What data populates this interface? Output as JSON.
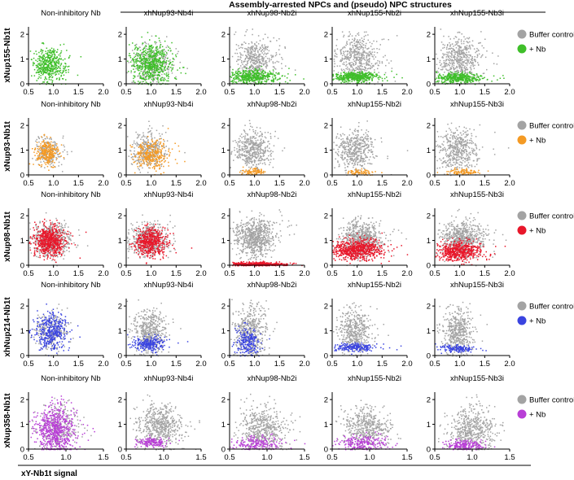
{
  "header": {
    "title": "Assembly-arrested NPCs and (pseudo) NPC structures"
  },
  "x_axis_label": "xY-Nb1t signal",
  "legend": {
    "control_label": "Buffer control",
    "nb_label": "+ Nb",
    "control_color": "#a3a3a3"
  },
  "chart_data": {
    "type": "scatter",
    "column_titles": [
      "Non-inhibitory Nb",
      "xhNup93-Nb4i",
      "xhNup98-Nb2i",
      "xhNup155-Nb2i",
      "xhNup155-Nb3i"
    ],
    "rows": [
      {
        "ylabel": "xNup155-Nb1t",
        "nb_color": "#3fbf2a",
        "xlim": [
          0.5,
          2.0
        ],
        "xticks": [
          "0.5",
          "1.0",
          "1.5",
          "2.0"
        ],
        "ylim": [
          0,
          2.3
        ],
        "yticks": [
          "0",
          "1",
          "2"
        ],
        "panels": [
          {
            "title": "Non-inhibitory Nb",
            "nb": {
              "x_center": 0.9,
              "x_spread": 0.16,
              "y_center": 0.8,
              "y_spread": 0.35,
              "count": 450
            },
            "control": null
          },
          {
            "title": "xhNup93-Nb4i",
            "nb": {
              "x_center": 1.0,
              "x_spread": 0.2,
              "y_center": 0.8,
              "y_spread": 0.4,
              "count": 600
            },
            "control": {
              "x_center": 1.0,
              "x_spread": 0.2,
              "y_center": 0.85,
              "y_spread": 0.4,
              "count": 300
            }
          },
          {
            "title": "xhNup98-Nb2i",
            "nb": {
              "x_center": 0.95,
              "x_spread": 0.25,
              "y_center": 0.3,
              "y_spread": 0.15,
              "count": 450
            },
            "control": {
              "x_center": 1.0,
              "x_spread": 0.2,
              "y_center": 1.0,
              "y_spread": 0.45,
              "count": 450
            }
          },
          {
            "title": "xhNup155-Nb2i",
            "nb": {
              "x_center": 0.95,
              "x_spread": 0.22,
              "y_center": 0.3,
              "y_spread": 0.1,
              "count": 450
            },
            "control": {
              "x_center": 1.0,
              "x_spread": 0.2,
              "y_center": 1.05,
              "y_spread": 0.45,
              "count": 500
            }
          },
          {
            "title": "xhNup155-Nb3i",
            "nb": {
              "x_center": 0.95,
              "x_spread": 0.22,
              "y_center": 0.25,
              "y_spread": 0.1,
              "count": 400
            },
            "control": {
              "x_center": 1.0,
              "x_spread": 0.2,
              "y_center": 1.0,
              "y_spread": 0.45,
              "count": 500
            }
          }
        ]
      },
      {
        "ylabel": "xNup93-Nb1t",
        "nb_color": "#f49a24",
        "xlim": [
          0.5,
          2.0
        ],
        "xticks": [
          "0.5",
          "1.0",
          "1.5",
          "2.0"
        ],
        "ylim": [
          0,
          2.3
        ],
        "yticks": [
          "0",
          "1",
          "2"
        ],
        "panels": [
          {
            "title": "Non-inhibitory Nb",
            "nb": {
              "x_center": 0.85,
              "x_spread": 0.1,
              "y_center": 0.95,
              "y_spread": 0.25,
              "count": 260
            },
            "control": {
              "x_center": 0.9,
              "x_spread": 0.12,
              "y_center": 0.95,
              "y_spread": 0.3,
              "count": 200
            }
          },
          {
            "title": "xhNup93-Nb4i",
            "nb": {
              "x_center": 1.0,
              "x_spread": 0.15,
              "y_center": 0.85,
              "y_spread": 0.3,
              "count": 300
            },
            "control": {
              "x_center": 0.95,
              "x_spread": 0.15,
              "y_center": 1.0,
              "y_spread": 0.35,
              "count": 350
            }
          },
          {
            "title": "xhNup98-Nb2i",
            "nb": {
              "x_center": 0.95,
              "x_spread": 0.12,
              "y_center": 0.15,
              "y_spread": 0.07,
              "count": 80
            },
            "control": {
              "x_center": 0.95,
              "x_spread": 0.18,
              "y_center": 1.05,
              "y_spread": 0.4,
              "count": 450
            }
          },
          {
            "title": "xhNup155-Nb2i",
            "nb": {
              "x_center": 1.05,
              "x_spread": 0.12,
              "y_center": 0.12,
              "y_spread": 0.06,
              "count": 70
            },
            "control": {
              "x_center": 0.95,
              "x_spread": 0.18,
              "y_center": 1.0,
              "y_spread": 0.4,
              "count": 450
            }
          },
          {
            "title": "xhNup155-Nb3i",
            "nb": {
              "x_center": 1.05,
              "x_spread": 0.15,
              "y_center": 0.15,
              "y_spread": 0.06,
              "count": 90
            },
            "control": {
              "x_center": 0.95,
              "x_spread": 0.18,
              "y_center": 1.05,
              "y_spread": 0.4,
              "count": 450
            }
          }
        ]
      },
      {
        "ylabel": "xNup98-Nb1t",
        "nb_color": "#e8172a",
        "xlim": [
          0.5,
          2.0
        ],
        "xticks": [
          "0.5",
          "1.0",
          "1.5",
          "2.0"
        ],
        "ylim": [
          0,
          2.3
        ],
        "yticks": [
          "0",
          "1",
          "2"
        ],
        "panels": [
          {
            "title": "Non-inhibitory Nb",
            "nb": {
              "x_center": 0.9,
              "x_spread": 0.15,
              "y_center": 1.0,
              "y_spread": 0.3,
              "count": 600
            },
            "control": {
              "x_center": 0.95,
              "x_spread": 0.18,
              "y_center": 1.05,
              "y_spread": 0.35,
              "count": 500
            }
          },
          {
            "title": "xhNup93-Nb4i",
            "nb": {
              "x_center": 0.98,
              "x_spread": 0.15,
              "y_center": 0.95,
              "y_spread": 0.28,
              "count": 500
            },
            "control": {
              "x_center": 0.95,
              "x_spread": 0.18,
              "y_center": 1.05,
              "y_spread": 0.35,
              "count": 500
            }
          },
          {
            "title": "xhNup98-Nb2i",
            "nb": {
              "x_center": 1.05,
              "x_spread": 0.28,
              "y_center": 0.06,
              "y_spread": 0.04,
              "count": 500
            },
            "control": {
              "x_center": 1.0,
              "x_spread": 0.2,
              "y_center": 1.15,
              "y_spread": 0.4,
              "count": 700
            }
          },
          {
            "title": "xhNup155-Nb2i",
            "nb": {
              "x_center": 1.0,
              "x_spread": 0.25,
              "y_center": 0.65,
              "y_spread": 0.2,
              "count": 650
            },
            "control": {
              "x_center": 1.05,
              "x_spread": 0.2,
              "y_center": 1.1,
              "y_spread": 0.35,
              "count": 650
            }
          },
          {
            "title": "xhNup155-Nb3i",
            "nb": {
              "x_center": 0.95,
              "x_spread": 0.22,
              "y_center": 0.6,
              "y_spread": 0.2,
              "count": 550
            },
            "control": {
              "x_center": 1.05,
              "x_spread": 0.2,
              "y_center": 1.1,
              "y_spread": 0.35,
              "count": 650
            }
          }
        ]
      },
      {
        "ylabel": "xhNup214-Nb1t",
        "nb_color": "#3a44e0",
        "xlim": [
          0.5,
          2.0
        ],
        "xticks": [
          "0.5",
          "1.0",
          "1.5",
          "2.0"
        ],
        "ylim": [
          0,
          2.3
        ],
        "yticks": [
          "0",
          "1",
          "2"
        ],
        "panels": [
          {
            "title": "Non-inhibitory Nb",
            "nb": {
              "x_center": 0.95,
              "x_spread": 0.15,
              "y_center": 0.95,
              "y_spread": 0.4,
              "count": 380
            },
            "control": {
              "x_center": 0.95,
              "x_spread": 0.15,
              "y_center": 1.0,
              "y_spread": 0.4,
              "count": 250
            }
          },
          {
            "title": "xhNup93-Nb4i",
            "nb": {
              "x_center": 0.95,
              "x_spread": 0.15,
              "y_center": 0.5,
              "y_spread": 0.15,
              "count": 250
            },
            "control": {
              "x_center": 0.95,
              "x_spread": 0.15,
              "y_center": 1.0,
              "y_spread": 0.45,
              "count": 450
            }
          },
          {
            "title": "xhNup98-Nb2i",
            "nb": {
              "x_center": 0.85,
              "x_spread": 0.12,
              "y_center": 0.55,
              "y_spread": 0.3,
              "count": 220
            },
            "control": {
              "x_center": 0.9,
              "x_spread": 0.15,
              "y_center": 1.0,
              "y_spread": 0.5,
              "count": 450
            }
          },
          {
            "title": "xhNup155-Nb2i",
            "nb": {
              "x_center": 0.95,
              "x_spread": 0.2,
              "y_center": 0.35,
              "y_spread": 0.08,
              "count": 200
            },
            "control": {
              "x_center": 0.95,
              "x_spread": 0.15,
              "y_center": 1.0,
              "y_spread": 0.45,
              "count": 450
            }
          },
          {
            "title": "xhNup155-Nb3i",
            "nb": {
              "x_center": 0.95,
              "x_spread": 0.15,
              "y_center": 0.3,
              "y_spread": 0.07,
              "count": 150
            },
            "control": {
              "x_center": 0.95,
              "x_spread": 0.15,
              "y_center": 1.0,
              "y_spread": 0.45,
              "count": 450
            }
          }
        ]
      },
      {
        "ylabel": "xNup358-Nb1t",
        "nb_color": "#b83fd6",
        "xlim": [
          0.5,
          1.5
        ],
        "xticks": [
          "0.5",
          "1.0",
          "1.5"
        ],
        "ylim": [
          0,
          2.3
        ],
        "yticks": [
          "0",
          "1",
          "2"
        ],
        "panels": [
          {
            "title": "Non-inhibitory Nb",
            "nb": {
              "x_center": 0.85,
              "x_spread": 0.12,
              "y_center": 0.8,
              "y_spread": 0.5,
              "count": 650
            },
            "control": {
              "x_center": 0.88,
              "x_spread": 0.12,
              "y_center": 0.85,
              "y_spread": 0.5,
              "count": 300
            }
          },
          {
            "title": "xhNup93-Nb4i",
            "nb": {
              "x_center": 0.85,
              "x_spread": 0.1,
              "y_center": 0.3,
              "y_spread": 0.1,
              "count": 150
            },
            "control": {
              "x_center": 0.95,
              "x_spread": 0.15,
              "y_center": 0.95,
              "y_spread": 0.45,
              "count": 550
            }
          },
          {
            "title": "xhNup98-Nb2i",
            "nb": {
              "x_center": 0.85,
              "x_spread": 0.15,
              "y_center": 0.25,
              "y_spread": 0.15,
              "count": 200
            },
            "control": {
              "x_center": 0.95,
              "x_spread": 0.15,
              "y_center": 0.85,
              "y_spread": 0.45,
              "count": 500
            }
          },
          {
            "title": "xhNup155-Nb2i",
            "nb": {
              "x_center": 0.9,
              "x_spread": 0.15,
              "y_center": 0.25,
              "y_spread": 0.15,
              "count": 220
            },
            "control": {
              "x_center": 0.95,
              "x_spread": 0.15,
              "y_center": 0.85,
              "y_spread": 0.45,
              "count": 500
            }
          },
          {
            "title": "xhNup155-Nb3i",
            "nb": {
              "x_center": 0.9,
              "x_spread": 0.12,
              "y_center": 0.2,
              "y_spread": 0.12,
              "count": 200
            },
            "control": {
              "x_center": 1.0,
              "x_spread": 0.15,
              "y_center": 0.8,
              "y_spread": 0.45,
              "count": 500
            }
          }
        ]
      }
    ]
  }
}
